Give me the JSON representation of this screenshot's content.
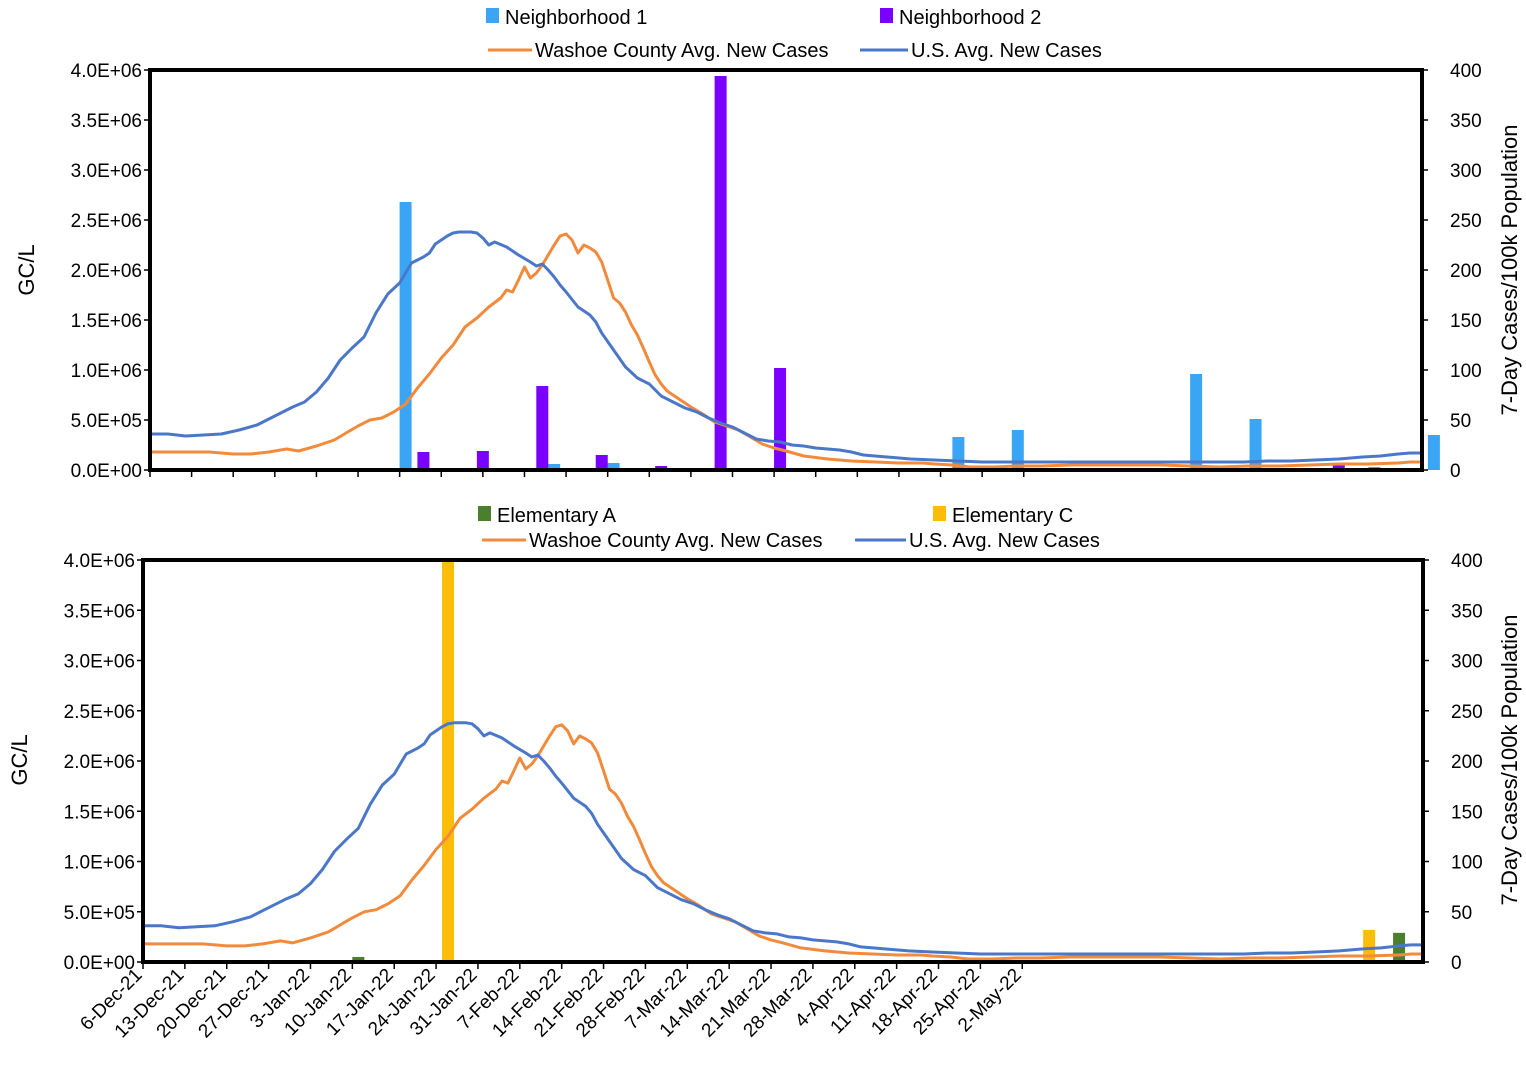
{
  "colors": {
    "neighborhood1": "#3ba5f5",
    "neighborhood2": "#7a00ff",
    "elementaryA": "#4a7f2e",
    "elementaryC": "#fbbd08",
    "washoe": "#f28a3c",
    "us": "#4a77c8"
  },
  "chart_data": [
    {
      "type": "bar+line",
      "y_left_label": "GC/L",
      "y_right_label": "7-Day Cases/100k Population",
      "y_left_ticks": [
        "0.0E+00",
        "5.0E+05",
        "1.0E+06",
        "1.5E+06",
        "2.0E+06",
        "2.5E+06",
        "3.0E+06",
        "3.5E+06",
        "4.0E+06"
      ],
      "y_right_ticks": [
        "0",
        "50",
        "100",
        "150",
        "200",
        "250",
        "300",
        "350",
        "400"
      ],
      "ylim_left": [
        0,
        4000000
      ],
      "ylim_right": [
        0,
        400
      ],
      "x_axis": "days since 6-Dec-21 (shared with lower chart)",
      "legend": [
        "Neighborhood 1",
        "Neighborhood 2",
        "Washoe County  Avg. New Cases",
        "U.S. Avg. New Cases"
      ],
      "bar_series": [
        {
          "name": "Neighborhood 1",
          "color_key": "neighborhood1",
          "points": [
            [
              43,
              2680000
            ],
            [
              68,
              60000
            ],
            [
              78,
              70000
            ],
            [
              136,
              330000
            ],
            [
              146,
              400000
            ],
            [
              176,
              960000
            ],
            [
              186,
              510000
            ],
            [
              206,
              30000
            ],
            [
              216,
              350000
            ]
          ]
        },
        {
          "name": "Neighborhood 2",
          "color_key": "neighborhood2",
          "points": [
            [
              6,
              10000
            ],
            [
              27,
              10000
            ],
            [
              46,
              180000
            ],
            [
              56,
              190000
            ],
            [
              66,
              840000
            ],
            [
              76,
              150000
            ],
            [
              86,
              40000
            ],
            [
              96,
              3940000
            ],
            [
              106,
              1020000
            ],
            [
              200,
              50000
            ]
          ]
        }
      ],
      "line_series": [
        "washoe",
        "us"
      ]
    },
    {
      "type": "bar+line",
      "y_left_label": "GC/L",
      "y_right_label": "7-Day Cases/100k Population",
      "y_left_ticks": [
        "0.0E+00",
        "5.0E+05",
        "1.0E+06",
        "1.5E+06",
        "2.0E+06",
        "2.5E+06",
        "3.0E+06",
        "3.5E+06",
        "4.0E+06"
      ],
      "y_right_ticks": [
        "0",
        "50",
        "100",
        "150",
        "200",
        "250",
        "300",
        "350",
        "400"
      ],
      "ylim_left": [
        0,
        4000000
      ],
      "ylim_right": [
        0,
        400
      ],
      "x_tick_labels": [
        "6-Dec-21",
        "13-Dec-21",
        "20-Dec-21",
        "27-Dec-21",
        "3-Jan-22",
        "10-Jan-22",
        "17-Jan-22",
        "24-Jan-22",
        "31-Jan-22",
        "7-Feb-22",
        "14-Feb-22",
        "21-Feb-22",
        "28-Feb-22",
        "7-Mar-22",
        "14-Mar-22",
        "21-Mar-22",
        "28-Mar-22",
        "4-Apr-22",
        "11-Apr-22",
        "18-Apr-22",
        "25-Apr-22",
        "2-May-22"
      ],
      "legend": [
        "Elementary A",
        "Elementary C",
        "Washoe County  Avg. New Cases",
        "U.S. Avg. New Cases"
      ],
      "bar_series": [
        {
          "name": "Elementary A",
          "color_key": "elementaryA",
          "points": [
            [
              36,
              50000
            ],
            [
              210,
              290000
            ]
          ]
        },
        {
          "name": "Elementary C",
          "color_key": "elementaryC",
          "points": [
            [
              51,
              4000000
            ],
            [
              205,
              320000
            ]
          ]
        }
      ],
      "line_series": [
        "washoe",
        "us"
      ]
    }
  ],
  "lines": {
    "washoe": {
      "name": "Washoe County  Avg. New Cases",
      "points": [
        [
          0,
          18
        ],
        [
          10,
          18
        ],
        [
          14,
          16
        ],
        [
          17,
          16
        ],
        [
          20,
          18
        ],
        [
          23,
          21
        ],
        [
          25,
          19
        ],
        [
          28,
          24
        ],
        [
          31,
          30
        ],
        [
          33,
          37
        ],
        [
          35,
          44
        ],
        [
          37,
          50
        ],
        [
          39,
          52
        ],
        [
          41,
          58
        ],
        [
          43,
          66
        ],
        [
          45,
          82
        ],
        [
          47,
          96
        ],
        [
          49,
          112
        ],
        [
          51,
          125
        ],
        [
          53,
          143
        ],
        [
          55,
          152
        ],
        [
          57,
          163
        ],
        [
          59,
          172
        ],
        [
          60,
          180
        ],
        [
          61,
          178
        ],
        [
          62,
          190
        ],
        [
          63,
          203
        ],
        [
          64,
          192
        ],
        [
          65,
          197
        ],
        [
          66,
          205
        ],
        [
          67,
          215
        ],
        [
          68,
          225
        ],
        [
          69,
          234
        ],
        [
          70,
          236
        ],
        [
          71,
          230
        ],
        [
          72,
          217
        ],
        [
          73,
          225
        ],
        [
          74,
          222
        ],
        [
          75,
          218
        ],
        [
          76,
          208
        ],
        [
          77,
          190
        ],
        [
          78,
          172
        ],
        [
          79,
          167
        ],
        [
          80,
          158
        ],
        [
          81,
          145
        ],
        [
          82,
          135
        ],
        [
          83,
          122
        ],
        [
          84,
          108
        ],
        [
          85,
          95
        ],
        [
          86,
          86
        ],
        [
          87,
          79
        ],
        [
          89,
          71
        ],
        [
          91,
          63
        ],
        [
          93,
          56
        ],
        [
          95,
          48
        ],
        [
          97,
          44
        ],
        [
          99,
          40
        ],
        [
          101,
          33
        ],
        [
          103,
          26
        ],
        [
          105,
          22
        ],
        [
          107,
          19
        ],
        [
          110,
          14
        ],
        [
          114,
          11
        ],
        [
          118,
          9
        ],
        [
          122,
          8
        ],
        [
          126,
          7
        ],
        [
          130,
          7
        ],
        [
          132,
          6
        ],
        [
          135,
          5
        ],
        [
          138,
          3
        ],
        [
          142,
          3
        ],
        [
          146,
          4
        ],
        [
          150,
          4
        ],
        [
          155,
          5
        ],
        [
          160,
          5
        ],
        [
          165,
          5
        ],
        [
          170,
          5
        ],
        [
          175,
          4
        ],
        [
          180,
          3
        ],
        [
          185,
          4
        ],
        [
          190,
          4
        ],
        [
          195,
          5
        ],
        [
          200,
          6
        ],
        [
          205,
          6
        ],
        [
          210,
          7
        ],
        [
          212,
          8
        ],
        [
          214,
          8
        ]
      ]
    },
    "us": {
      "name": "U.S. Avg. New Cases",
      "points": [
        [
          0,
          36
        ],
        [
          3,
          36
        ],
        [
          6,
          34
        ],
        [
          9,
          35
        ],
        [
          12,
          36
        ],
        [
          15,
          40
        ],
        [
          18,
          45
        ],
        [
          20,
          51
        ],
        [
          22,
          57
        ],
        [
          24,
          63
        ],
        [
          26,
          68
        ],
        [
          28,
          78
        ],
        [
          30,
          92
        ],
        [
          32,
          110
        ],
        [
          34,
          122
        ],
        [
          36,
          133
        ],
        [
          38,
          157
        ],
        [
          40,
          176
        ],
        [
          42,
          187
        ],
        [
          44,
          207
        ],
        [
          46,
          213
        ],
        [
          47,
          217
        ],
        [
          48,
          226
        ],
        [
          49,
          230
        ],
        [
          50,
          234
        ],
        [
          51,
          237
        ],
        [
          52,
          238
        ],
        [
          54,
          238
        ],
        [
          55,
          237
        ],
        [
          56,
          232
        ],
        [
          57,
          225
        ],
        [
          58,
          228
        ],
        [
          60,
          223
        ],
        [
          62,
          215
        ],
        [
          64,
          208
        ],
        [
          65,
          204
        ],
        [
          66,
          206
        ],
        [
          67,
          200
        ],
        [
          68,
          193
        ],
        [
          69,
          185
        ],
        [
          70,
          178
        ],
        [
          72,
          163
        ],
        [
          74,
          155
        ],
        [
          75,
          148
        ],
        [
          76,
          137
        ],
        [
          78,
          120
        ],
        [
          80,
          103
        ],
        [
          82,
          92
        ],
        [
          84,
          86
        ],
        [
          86,
          74
        ],
        [
          88,
          68
        ],
        [
          90,
          62
        ],
        [
          92,
          58
        ],
        [
          94,
          52
        ],
        [
          96,
          47
        ],
        [
          98,
          43
        ],
        [
          100,
          37
        ],
        [
          102,
          31
        ],
        [
          104,
          29
        ],
        [
          106,
          28
        ],
        [
          108,
          25
        ],
        [
          110,
          24
        ],
        [
          112,
          22
        ],
        [
          114,
          21
        ],
        [
          116,
          20
        ],
        [
          118,
          18
        ],
        [
          120,
          15
        ],
        [
          124,
          13
        ],
        [
          128,
          11
        ],
        [
          132,
          10
        ],
        [
          136,
          9
        ],
        [
          140,
          8
        ],
        [
          144,
          8
        ],
        [
          148,
          8
        ],
        [
          152,
          8
        ],
        [
          156,
          8
        ],
        [
          160,
          8
        ],
        [
          164,
          8
        ],
        [
          168,
          8
        ],
        [
          172,
          8
        ],
        [
          176,
          8
        ],
        [
          180,
          8
        ],
        [
          184,
          8
        ],
        [
          188,
          9
        ],
        [
          192,
          9
        ],
        [
          196,
          10
        ],
        [
          200,
          11
        ],
        [
          204,
          13
        ],
        [
          207,
          14
        ],
        [
          210,
          16
        ],
        [
          212,
          17
        ],
        [
          214,
          17
        ]
      ]
    }
  },
  "axes_labels": {
    "left": "GC/L",
    "right": "7-Day Cases/100k Population"
  },
  "legends": {
    "top": {
      "bar1": "Neighborhood 1",
      "bar2": "Neighborhood 2",
      "line1": "Washoe County  Avg. New Cases",
      "line2": "U.S. Avg. New Cases"
    },
    "bottom": {
      "bar1": "Elementary A",
      "bar2": "Elementary C",
      "line1": "Washoe County  Avg. New Cases",
      "line2": "U.S. Avg. New Cases"
    }
  }
}
